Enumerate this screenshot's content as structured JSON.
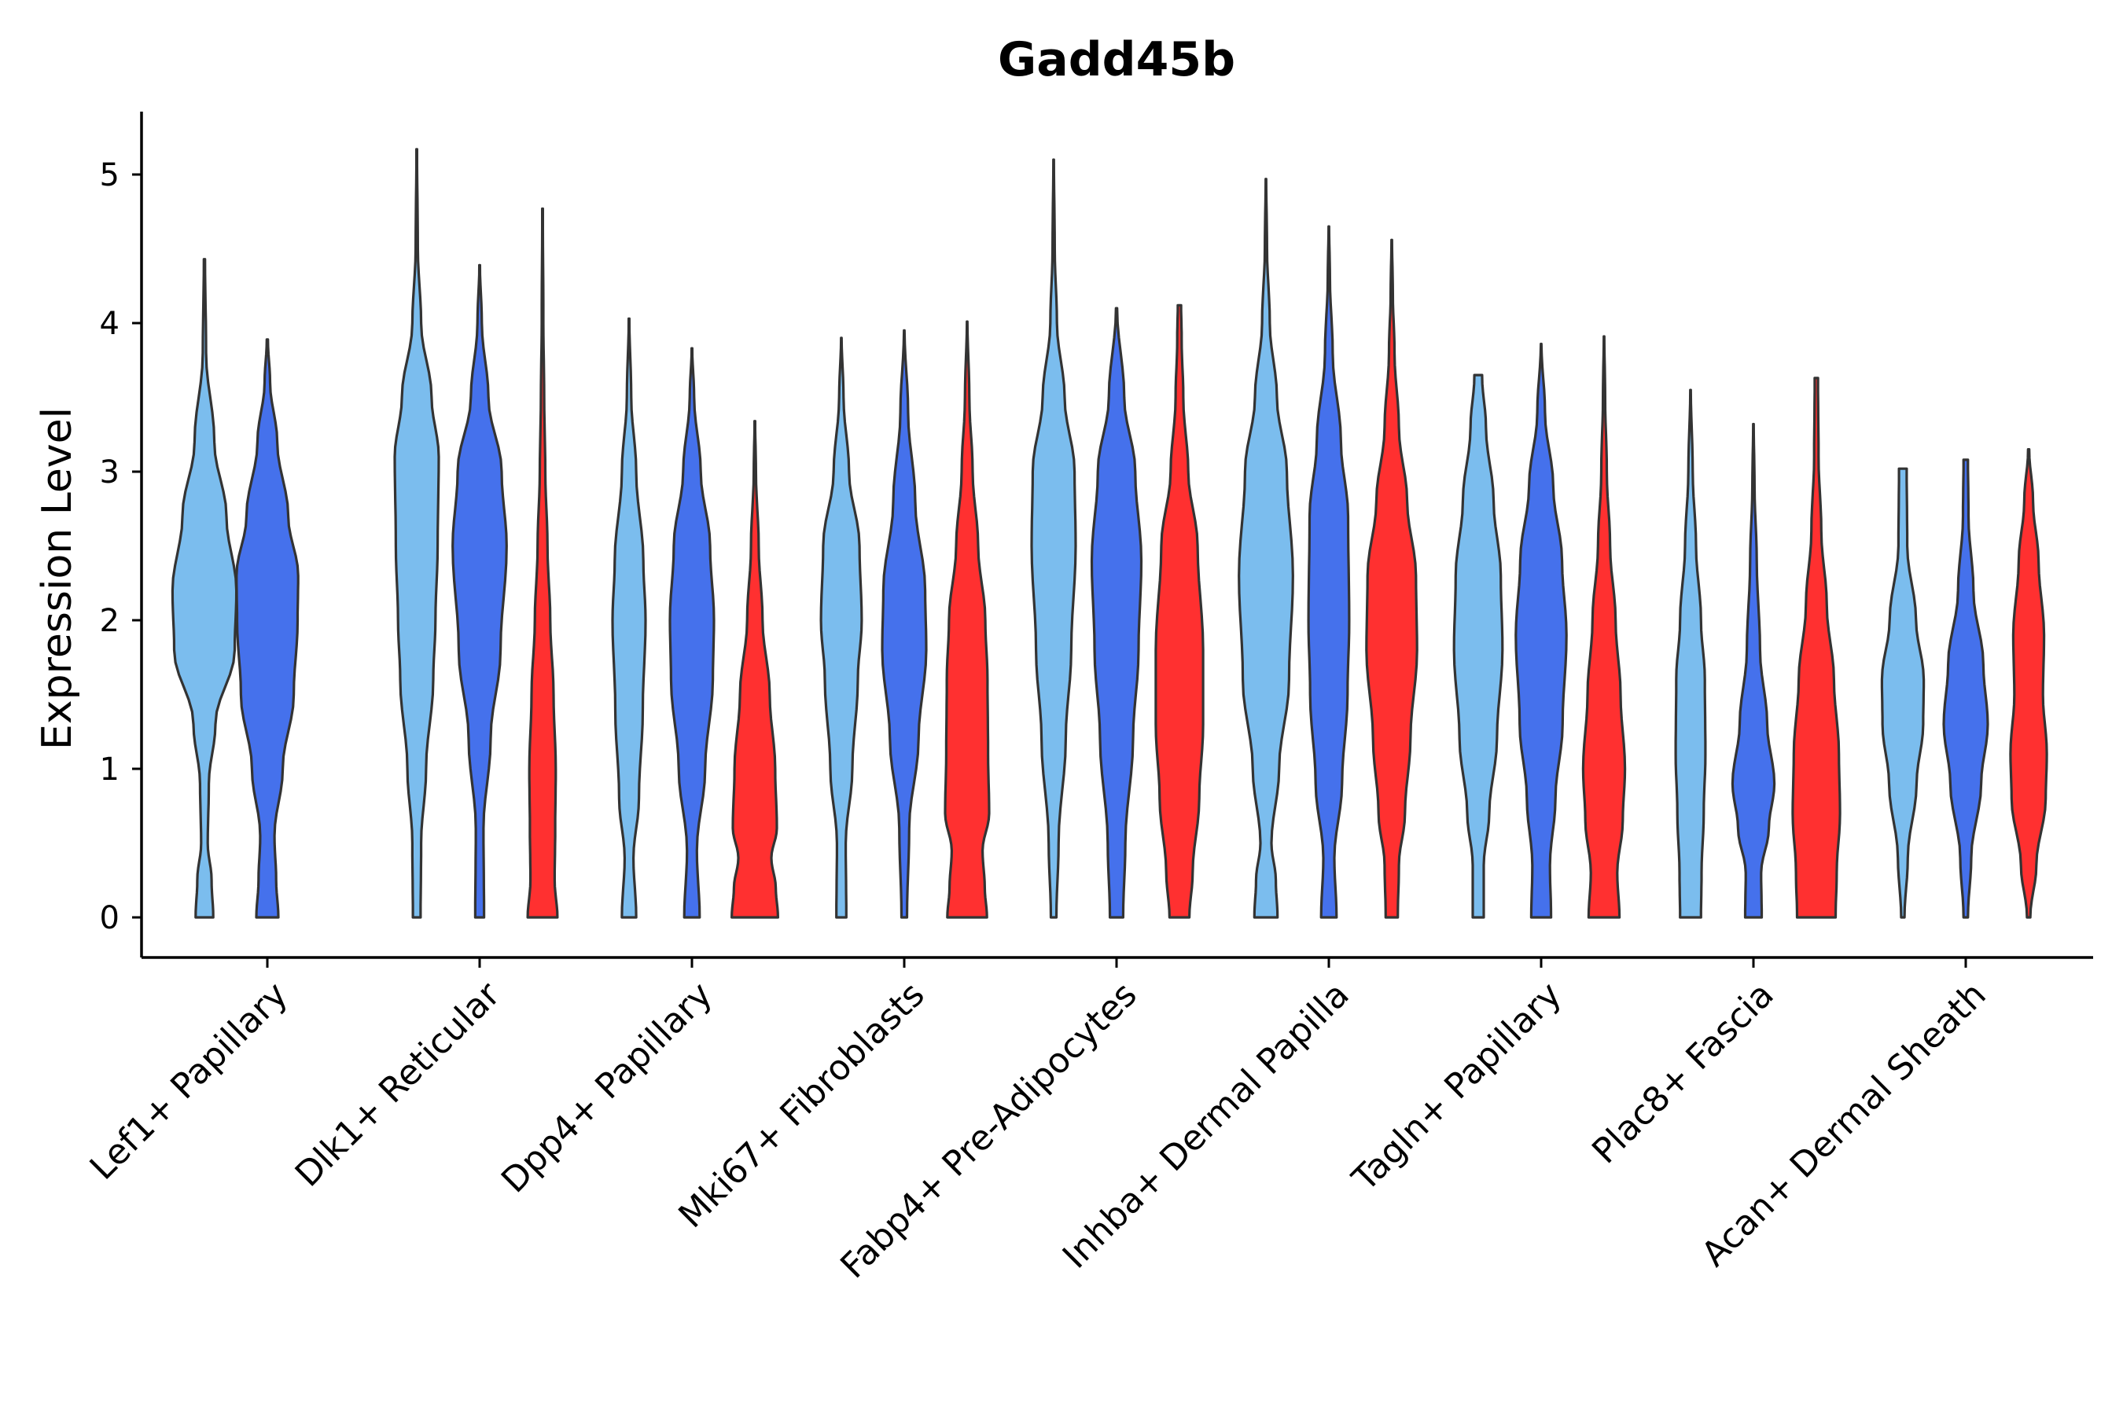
{
  "chart_data": {
    "type": "violin",
    "title": "Gadd45b",
    "xlabel": "",
    "ylabel": "Expression Level",
    "ylim": [
      -0.27,
      5.45
    ],
    "yticks": [
      "0",
      "1",
      "2",
      "3",
      "4",
      "5"
    ],
    "grid": false,
    "legend": "none",
    "colors": {
      "group_a": "#7BBDEE",
      "group_b": "#4571EC",
      "group_c": "#FF3030",
      "outline": "#333333"
    },
    "categories": [
      "Lef1+ Papillary",
      "Dlk1+ Reticular",
      "Dpp4+ Papillary",
      "Mki67+ Fibroblasts",
      "Fabp4+ Pre-Adipocytes",
      "Inhba+ Dermal Papilla",
      "Tagln+ Papillary",
      "Plac8+ Fascia",
      "Acan+ Dermal Sheath"
    ],
    "violins": [
      {
        "category": 0,
        "group": "group_a",
        "max": 4.43,
        "profile": [
          [
            0,
            0.16
          ],
          [
            0.25,
            0.13
          ],
          [
            0.5,
            0.06
          ],
          [
            0.9,
            0.08
          ],
          [
            1.3,
            0.2
          ],
          [
            1.8,
            0.55
          ],
          [
            2.2,
            0.58
          ],
          [
            2.7,
            0.4
          ],
          [
            3.2,
            0.18
          ],
          [
            3.8,
            0.03
          ],
          [
            4.43,
            0.01
          ]
        ]
      },
      {
        "category": 0,
        "group": "group_b",
        "max": 3.89,
        "profile": [
          [
            0,
            0.2
          ],
          [
            0.25,
            0.16
          ],
          [
            0.55,
            0.13
          ],
          [
            1.0,
            0.28
          ],
          [
            1.5,
            0.48
          ],
          [
            2.0,
            0.55
          ],
          [
            2.3,
            0.56
          ],
          [
            2.7,
            0.38
          ],
          [
            3.2,
            0.18
          ],
          [
            3.6,
            0.05
          ],
          [
            3.89,
            0.01
          ]
        ]
      },
      {
        "category": 1,
        "group": "group_a",
        "max": 5.17,
        "profile": [
          [
            0,
            0.07
          ],
          [
            0.5,
            0.08
          ],
          [
            1.0,
            0.17
          ],
          [
            1.6,
            0.3
          ],
          [
            2.0,
            0.34
          ],
          [
            2.5,
            0.38
          ],
          [
            3.1,
            0.4
          ],
          [
            3.5,
            0.27
          ],
          [
            4.0,
            0.08
          ],
          [
            4.5,
            0.02
          ],
          [
            5.17,
            0.005
          ]
        ]
      },
      {
        "category": 1,
        "group": "group_b",
        "max": 4.39,
        "profile": [
          [
            0,
            0.08
          ],
          [
            0.6,
            0.07
          ],
          [
            1.2,
            0.2
          ],
          [
            1.8,
            0.38
          ],
          [
            2.5,
            0.49
          ],
          [
            3.0,
            0.4
          ],
          [
            3.5,
            0.16
          ],
          [
            4.0,
            0.04
          ],
          [
            4.39,
            0.005
          ]
        ]
      },
      {
        "category": 1,
        "group": "group_c",
        "max": 4.77,
        "profile": [
          [
            0,
            0.27
          ],
          [
            0.25,
            0.22
          ],
          [
            0.6,
            0.23
          ],
          [
            1.0,
            0.24
          ],
          [
            1.5,
            0.2
          ],
          [
            2.0,
            0.14
          ],
          [
            2.5,
            0.09
          ],
          [
            3.0,
            0.05
          ],
          [
            3.5,
            0.03
          ],
          [
            4.0,
            0.015
          ],
          [
            4.77,
            0.005
          ]
        ]
      },
      {
        "category": 2,
        "group": "group_a",
        "max": 4.03,
        "profile": [
          [
            0,
            0.13
          ],
          [
            0.4,
            0.08
          ],
          [
            0.8,
            0.18
          ],
          [
            1.4,
            0.25
          ],
          [
            2.0,
            0.3
          ],
          [
            2.4,
            0.26
          ],
          [
            3.0,
            0.13
          ],
          [
            3.5,
            0.04
          ],
          [
            4.03,
            0.005
          ]
        ]
      },
      {
        "category": 2,
        "group": "group_b",
        "max": 3.83,
        "profile": [
          [
            0,
            0.14
          ],
          [
            0.45,
            0.09
          ],
          [
            1.0,
            0.24
          ],
          [
            1.6,
            0.38
          ],
          [
            2.0,
            0.4
          ],
          [
            2.5,
            0.33
          ],
          [
            3.0,
            0.16
          ],
          [
            3.5,
            0.04
          ],
          [
            3.83,
            0.005
          ]
        ]
      },
      {
        "category": 2,
        "group": "group_c",
        "max": 3.34,
        "profile": [
          [
            0,
            0.42
          ],
          [
            0.2,
            0.38
          ],
          [
            0.4,
            0.3
          ],
          [
            0.6,
            0.4
          ],
          [
            1.0,
            0.37
          ],
          [
            1.5,
            0.27
          ],
          [
            2.0,
            0.14
          ],
          [
            2.5,
            0.07
          ],
          [
            3.0,
            0.02
          ],
          [
            3.34,
            0.005
          ]
        ]
      },
      {
        "category": 3,
        "group": "group_a",
        "max": 3.9,
        "profile": [
          [
            0,
            0.09
          ],
          [
            0.5,
            0.08
          ],
          [
            1.0,
            0.2
          ],
          [
            1.6,
            0.3
          ],
          [
            2.0,
            0.37
          ],
          [
            2.5,
            0.33
          ],
          [
            3.0,
            0.14
          ],
          [
            3.5,
            0.04
          ],
          [
            3.9,
            0.005
          ]
        ]
      },
      {
        "category": 3,
        "group": "group_b",
        "max": 3.95,
        "profile": [
          [
            0,
            0.05
          ],
          [
            0.6,
            0.09
          ],
          [
            1.2,
            0.26
          ],
          [
            1.8,
            0.4
          ],
          [
            2.2,
            0.38
          ],
          [
            2.8,
            0.2
          ],
          [
            3.4,
            0.07
          ],
          [
            3.95,
            0.005
          ]
        ]
      },
      {
        "category": 3,
        "group": "group_c",
        "max": 4.01,
        "profile": [
          [
            0,
            0.36
          ],
          [
            0.2,
            0.32
          ],
          [
            0.45,
            0.28
          ],
          [
            0.7,
            0.4
          ],
          [
            1.1,
            0.38
          ],
          [
            1.6,
            0.37
          ],
          [
            2.0,
            0.33
          ],
          [
            2.5,
            0.2
          ],
          [
            3.0,
            0.1
          ],
          [
            3.5,
            0.04
          ],
          [
            4.01,
            0.005
          ]
        ]
      },
      {
        "category": 4,
        "group": "group_a",
        "max": 5.1,
        "profile": [
          [
            0,
            0.05
          ],
          [
            0.5,
            0.09
          ],
          [
            1.2,
            0.22
          ],
          [
            1.8,
            0.32
          ],
          [
            2.5,
            0.4
          ],
          [
            3.0,
            0.38
          ],
          [
            3.5,
            0.2
          ],
          [
            4.0,
            0.06
          ],
          [
            4.5,
            0.02
          ],
          [
            5.1,
            0.005
          ]
        ]
      },
      {
        "category": 4,
        "group": "group_b",
        "max": 4.1,
        "profile": [
          [
            0,
            0.12
          ],
          [
            0.5,
            0.16
          ],
          [
            1.2,
            0.3
          ],
          [
            1.8,
            0.4
          ],
          [
            2.4,
            0.45
          ],
          [
            3.0,
            0.34
          ],
          [
            3.5,
            0.14
          ],
          [
            4.1,
            0.01
          ]
        ]
      },
      {
        "category": 4,
        "group": "group_c",
        "max": 4.12,
        "profile": [
          [
            0,
            0.18
          ],
          [
            0.3,
            0.24
          ],
          [
            0.8,
            0.36
          ],
          [
            1.3,
            0.43
          ],
          [
            1.8,
            0.43
          ],
          [
            2.5,
            0.33
          ],
          [
            3.0,
            0.16
          ],
          [
            3.5,
            0.07
          ],
          [
            3.9,
            0.04
          ],
          [
            4.12,
            0.03
          ]
        ]
      },
      {
        "category": 5,
        "group": "group_a",
        "max": 4.97,
        "profile": [
          [
            0,
            0.21
          ],
          [
            0.25,
            0.18
          ],
          [
            0.5,
            0.1
          ],
          [
            1.0,
            0.24
          ],
          [
            1.6,
            0.42
          ],
          [
            2.3,
            0.49
          ],
          [
            3.0,
            0.38
          ],
          [
            3.5,
            0.2
          ],
          [
            4.0,
            0.07
          ],
          [
            4.5,
            0.02
          ],
          [
            4.97,
            0.005
          ]
        ]
      },
      {
        "category": 5,
        "group": "group_b",
        "max": 4.65,
        "profile": [
          [
            0,
            0.14
          ],
          [
            0.4,
            0.1
          ],
          [
            0.9,
            0.24
          ],
          [
            1.5,
            0.34
          ],
          [
            2.0,
            0.37
          ],
          [
            2.7,
            0.35
          ],
          [
            3.2,
            0.22
          ],
          [
            3.8,
            0.07
          ],
          [
            4.3,
            0.02
          ],
          [
            4.65,
            0.005
          ]
        ]
      },
      {
        "category": 5,
        "group": "group_c",
        "max": 4.56,
        "profile": [
          [
            0,
            0.11
          ],
          [
            0.35,
            0.13
          ],
          [
            0.7,
            0.24
          ],
          [
            1.2,
            0.34
          ],
          [
            1.8,
            0.46
          ],
          [
            2.3,
            0.44
          ],
          [
            2.8,
            0.28
          ],
          [
            3.3,
            0.13
          ],
          [
            3.8,
            0.05
          ],
          [
            4.2,
            0.02
          ],
          [
            4.56,
            0.005
          ]
        ]
      },
      {
        "category": 6,
        "group": "group_a",
        "max": 3.65,
        "profile": [
          [
            0,
            0.1
          ],
          [
            0.35,
            0.1
          ],
          [
            0.7,
            0.2
          ],
          [
            1.2,
            0.34
          ],
          [
            1.8,
            0.44
          ],
          [
            2.3,
            0.41
          ],
          [
            2.8,
            0.28
          ],
          [
            3.3,
            0.14
          ],
          [
            3.65,
            0.07
          ]
        ]
      },
      {
        "category": 6,
        "group": "group_b",
        "max": 3.86,
        "profile": [
          [
            0,
            0.18
          ],
          [
            0.35,
            0.16
          ],
          [
            0.8,
            0.26
          ],
          [
            1.3,
            0.39
          ],
          [
            1.9,
            0.46
          ],
          [
            2.4,
            0.38
          ],
          [
            2.9,
            0.22
          ],
          [
            3.4,
            0.07
          ],
          [
            3.86,
            0.005
          ]
        ]
      },
      {
        "category": 6,
        "group": "group_c",
        "max": 3.91,
        "profile": [
          [
            0,
            0.28
          ],
          [
            0.3,
            0.24
          ],
          [
            0.65,
            0.34
          ],
          [
            1.0,
            0.38
          ],
          [
            1.5,
            0.3
          ],
          [
            2.0,
            0.21
          ],
          [
            2.5,
            0.11
          ],
          [
            3.0,
            0.05
          ],
          [
            3.5,
            0.02
          ],
          [
            3.91,
            0.005
          ]
        ]
      },
      {
        "category": 7,
        "group": "group_a",
        "max": 3.55,
        "profile": [
          [
            0,
            0.19
          ],
          [
            0.3,
            0.2
          ],
          [
            0.7,
            0.24
          ],
          [
            1.1,
            0.27
          ],
          [
            1.6,
            0.26
          ],
          [
            2.0,
            0.19
          ],
          [
            2.5,
            0.1
          ],
          [
            3.0,
            0.04
          ],
          [
            3.55,
            0.005
          ]
        ]
      },
      {
        "category": 7,
        "group": "group_b",
        "max": 3.32,
        "profile": [
          [
            0,
            0.15
          ],
          [
            0.3,
            0.14
          ],
          [
            0.6,
            0.28
          ],
          [
            0.9,
            0.38
          ],
          [
            1.3,
            0.25
          ],
          [
            1.8,
            0.12
          ],
          [
            2.4,
            0.06
          ],
          [
            2.9,
            0.02
          ],
          [
            3.32,
            0.005
          ]
        ]
      },
      {
        "category": 7,
        "group": "group_c",
        "max": 3.63,
        "profile": [
          [
            0,
            0.35
          ],
          [
            0.3,
            0.37
          ],
          [
            0.7,
            0.43
          ],
          [
            1.1,
            0.41
          ],
          [
            1.6,
            0.32
          ],
          [
            2.1,
            0.19
          ],
          [
            2.6,
            0.09
          ],
          [
            3.1,
            0.04
          ],
          [
            3.63,
            0.03
          ]
        ]
      },
      {
        "category": 8,
        "group": "group_a",
        "max": 3.02,
        "profile": [
          [
            0,
            0.03
          ],
          [
            0.4,
            0.09
          ],
          [
            0.9,
            0.25
          ],
          [
            1.3,
            0.37
          ],
          [
            1.6,
            0.38
          ],
          [
            2.0,
            0.24
          ],
          [
            2.5,
            0.08
          ],
          [
            3.02,
            0.07
          ]
        ]
      },
      {
        "category": 8,
        "group": "group_b",
        "max": 3.08,
        "profile": [
          [
            0,
            0.04
          ],
          [
            0.4,
            0.1
          ],
          [
            0.9,
            0.28
          ],
          [
            1.3,
            0.4
          ],
          [
            1.7,
            0.32
          ],
          [
            2.2,
            0.14
          ],
          [
            2.7,
            0.05
          ],
          [
            3.08,
            0.04
          ]
        ]
      },
      {
        "category": 8,
        "group": "group_c",
        "max": 3.15,
        "profile": [
          [
            0,
            0.03
          ],
          [
            0.35,
            0.14
          ],
          [
            0.8,
            0.31
          ],
          [
            1.1,
            0.33
          ],
          [
            1.5,
            0.26
          ],
          [
            1.9,
            0.28
          ],
          [
            2.4,
            0.18
          ],
          [
            2.8,
            0.08
          ],
          [
            3.15,
            0.01
          ]
        ]
      }
    ]
  }
}
